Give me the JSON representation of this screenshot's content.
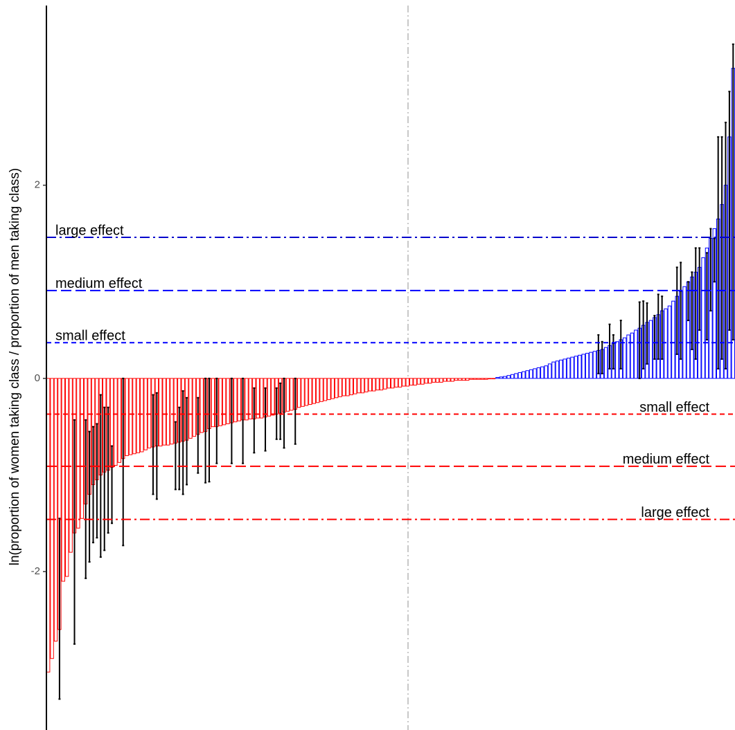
{
  "chart_data": {
    "type": "bar",
    "y_label": "ln(proportion of women taking class / proportion of men taking class)",
    "ylim": [
      -3.64,
      3.86
    ],
    "yticks": [
      -2,
      0,
      2
    ],
    "series": [
      {
        "color": "#ff0000",
        "values": [
          -3.04,
          -2.9,
          -2.72,
          -2.6,
          -2.1,
          -2.05,
          -1.8,
          -1.6,
          -1.55,
          -1.45,
          -1.3,
          -1.2,
          -1.1,
          -1.05,
          -1.0,
          -0.97,
          -0.95,
          -0.92,
          -0.9,
          -0.87,
          -0.83,
          -0.8,
          -0.79,
          -0.78,
          -0.77,
          -0.76,
          -0.74,
          -0.72,
          -0.71,
          -0.7,
          -0.7,
          -0.69,
          -0.69,
          -0.68,
          -0.67,
          -0.66,
          -0.65,
          -0.64,
          -0.62,
          -0.6,
          -0.58,
          -0.56,
          -0.55,
          -0.52,
          -0.5,
          -0.5,
          -0.49,
          -0.48,
          -0.47,
          -0.46,
          -0.45,
          -0.44,
          -0.43,
          -0.43,
          -0.42,
          -0.42,
          -0.41,
          -0.41,
          -0.4,
          -0.39,
          -0.38,
          -0.37,
          -0.36,
          -0.35,
          -0.34,
          -0.33,
          -0.32,
          -0.3,
          -0.29,
          -0.28,
          -0.27,
          -0.26,
          -0.25,
          -0.24,
          -0.23,
          -0.22,
          -0.21,
          -0.2,
          -0.19,
          -0.18,
          -0.18,
          -0.17,
          -0.16,
          -0.15,
          -0.15,
          -0.14,
          -0.13,
          -0.13,
          -0.12,
          -0.12,
          -0.11,
          -0.1,
          -0.1,
          -0.09,
          -0.09,
          -0.08,
          -0.08,
          -0.07,
          -0.07,
          -0.06,
          -0.06,
          -0.05,
          -0.05,
          -0.04,
          -0.04,
          -0.04,
          -0.03,
          -0.03,
          -0.03,
          -0.02,
          -0.02,
          -0.02,
          -0.02,
          -0.01,
          -0.01,
          -0.01,
          -0.01,
          -0.01,
          -0.005,
          -0.005
        ],
        "ci_low": [
          null,
          null,
          null,
          -3.32,
          null,
          null,
          null,
          -2.75,
          null,
          null,
          -2.07,
          -1.9,
          -1.7,
          -1.65,
          -1.85,
          -1.78,
          -1.6,
          -1.5,
          null,
          null,
          -1.73,
          null,
          null,
          null,
          null,
          null,
          null,
          null,
          -1.2,
          -1.25,
          null,
          null,
          null,
          null,
          -1.15,
          -1.15,
          -1.2,
          -1.1,
          null,
          null,
          -0.98,
          null,
          -1.08,
          -1.07,
          null,
          -0.88,
          null,
          null,
          null,
          -0.88,
          null,
          null,
          -0.88,
          null,
          null,
          -0.77,
          null,
          null,
          -0.75,
          null,
          null,
          -0.63,
          -0.63,
          -0.72,
          null,
          null,
          -0.68,
          null,
          null,
          null,
          null,
          null,
          null,
          null,
          null,
          null,
          null,
          null,
          null,
          null,
          null,
          null,
          null,
          null,
          null,
          null,
          null,
          null,
          null,
          null,
          null,
          null,
          null,
          null,
          null,
          null,
          null,
          null,
          null,
          null,
          null,
          null,
          null,
          null,
          null,
          null,
          null,
          null,
          null,
          null,
          null,
          null,
          null,
          null,
          null,
          null,
          null,
          null,
          null,
          null
        ],
        "ci_high": [
          null,
          null,
          null,
          -1.45,
          null,
          null,
          null,
          -0.43,
          null,
          null,
          -0.43,
          -0.55,
          -0.5,
          -0.47,
          -0.17,
          -0.3,
          -0.3,
          -0.7,
          null,
          null,
          0,
          null,
          null,
          null,
          null,
          null,
          null,
          null,
          -0.17,
          -0.15,
          null,
          null,
          null,
          null,
          -0.45,
          -0.3,
          -0.13,
          -0.2,
          null,
          null,
          -0.2,
          null,
          0,
          0,
          null,
          0,
          null,
          null,
          null,
          0,
          null,
          null,
          0,
          null,
          null,
          -0.1,
          null,
          null,
          -0.1,
          null,
          null,
          -0.1,
          -0.05,
          0,
          null,
          null,
          0,
          null,
          null,
          null,
          null,
          null,
          null,
          null,
          null,
          null,
          null,
          null,
          null,
          null,
          null,
          null,
          null,
          null,
          null,
          null,
          null,
          null,
          null,
          null,
          null,
          null,
          null,
          null,
          null,
          null,
          null,
          null,
          null,
          null,
          null,
          null,
          null,
          null,
          null,
          null,
          null,
          null,
          null,
          null,
          null,
          null,
          null,
          null,
          null,
          null,
          null,
          null,
          null,
          null
        ]
      },
      {
        "color": "#0000ff",
        "values": [
          0.01,
          0.015,
          0.02,
          0.03,
          0.04,
          0.05,
          0.06,
          0.07,
          0.08,
          0.09,
          0.1,
          0.11,
          0.12,
          0.13,
          0.15,
          0.17,
          0.18,
          0.19,
          0.2,
          0.21,
          0.22,
          0.23,
          0.24,
          0.25,
          0.26,
          0.27,
          0.28,
          0.29,
          0.3,
          0.32,
          0.34,
          0.36,
          0.38,
          0.4,
          0.42,
          0.45,
          0.47,
          0.5,
          0.52,
          0.55,
          0.58,
          0.6,
          0.63,
          0.66,
          0.7,
          0.72,
          0.75,
          0.8,
          0.85,
          0.9,
          0.95,
          1.0,
          1.05,
          1.1,
          1.15,
          1.25,
          1.35,
          1.45,
          1.55,
          1.65,
          1.8,
          2.0,
          2.5,
          3.21
        ],
        "ci_low": [
          null,
          null,
          null,
          null,
          null,
          null,
          null,
          null,
          null,
          null,
          null,
          null,
          null,
          null,
          null,
          null,
          null,
          null,
          null,
          null,
          null,
          null,
          null,
          null,
          null,
          null,
          null,
          0.05,
          0.05,
          null,
          0.1,
          0.1,
          null,
          0.1,
          null,
          null,
          null,
          null,
          0,
          0.1,
          0.15,
          null,
          0.2,
          0.2,
          0.2,
          null,
          null,
          null,
          0.25,
          0.2,
          null,
          0.6,
          0.3,
          0.2,
          0.5,
          null,
          0.4,
          0.7,
          1.0,
          0.1,
          0.2,
          0.1,
          0.5,
          0.4
        ],
        "ci_high": [
          null,
          null,
          null,
          null,
          null,
          null,
          null,
          null,
          null,
          null,
          null,
          null,
          null,
          null,
          null,
          null,
          null,
          null,
          null,
          null,
          null,
          null,
          null,
          null,
          null,
          null,
          null,
          0.45,
          0.38,
          null,
          0.56,
          0.45,
          null,
          0.6,
          null,
          null,
          null,
          null,
          0.79,
          0.8,
          0.78,
          null,
          0.65,
          0.87,
          0.85,
          null,
          null,
          null,
          1.15,
          1.2,
          null,
          1.0,
          1.1,
          1.35,
          1.35,
          null,
          1.3,
          1.55,
          1.45,
          2.5,
          2.5,
          2.65,
          2.97,
          3.46
        ]
      }
    ],
    "effect_lines": [
      {
        "label": "large effect",
        "value": 1.46,
        "color": "#0000cc",
        "linestyle": "dotdash",
        "label_side": "left"
      },
      {
        "label": "medium effect",
        "value": 0.91,
        "color": "#0000ff",
        "linestyle": "longdash",
        "label_side": "left"
      },
      {
        "label": "small effect",
        "value": 0.37,
        "color": "#0000ff",
        "linestyle": "dashed",
        "label_side": "left"
      },
      {
        "label": "small effect",
        "value": -0.37,
        "color": "#ff0000",
        "linestyle": "dashed",
        "label_side": "right"
      },
      {
        "label": "medium effect",
        "value": -0.91,
        "color": "#ff0000",
        "linestyle": "longdash",
        "label_side": "right"
      },
      {
        "label": "large effect",
        "value": -1.46,
        "color": "#ff0000",
        "linestyle": "dotdash",
        "label_side": "right"
      }
    ]
  }
}
